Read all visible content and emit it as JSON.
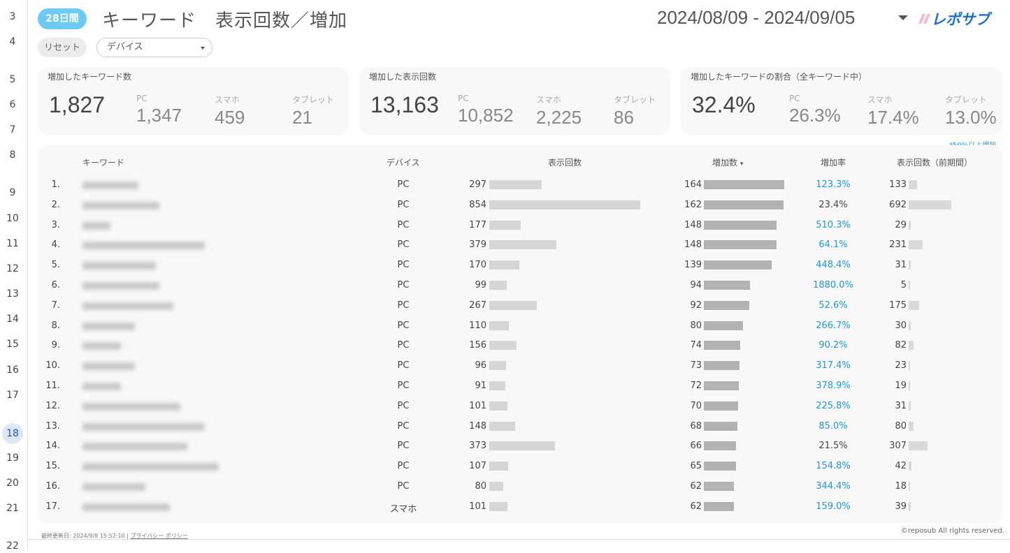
{
  "gutter": [
    "3",
    "4",
    "5",
    "6",
    "7",
    "8",
    "9",
    "10",
    "11",
    "12",
    "13",
    "14",
    "15",
    "16",
    "17",
    "18",
    "19",
    "20",
    "21",
    "22"
  ],
  "gutter_active": "18",
  "header": {
    "period_badge": "28日間",
    "title": "キーワード　表示回数／増加",
    "date_range": "2024/08/09 - 2024/09/05",
    "logo_text": "レポサブ"
  },
  "filters": {
    "reset_label": "リセット",
    "device_label": "デバイス"
  },
  "cards": [
    {
      "title": "増加したキーワード数",
      "total": "1,827",
      "pc_label": "PC",
      "pc": "1,347",
      "sp_label": "スマホ",
      "sp": "459",
      "tab_label": "タブレット",
      "tab": "21"
    },
    {
      "title": "増加した表示回数",
      "total": "13,163",
      "pc_label": "PC",
      "pc": "10,852",
      "sp_label": "スマホ",
      "sp": "2,225",
      "tab_label": "タブレット",
      "tab": "86"
    },
    {
      "title": "増加したキーワードの割合（全キーワード中）",
      "total": "32.4%",
      "pc_label": "PC",
      "pc": "26.3%",
      "sp_label": "スマホ",
      "sp": "17.4%",
      "tab_label": "タブレット",
      "tab": "13.0%"
    }
  ],
  "note": "*50%以上増加",
  "table": {
    "headers": {
      "keyword": "キーワード",
      "device": "デバイス",
      "impressions": "表示回数",
      "increase": "増加数",
      "sort_indicator": "▾",
      "rate": "増加率",
      "previous": "表示回数（前期間）"
    },
    "highlight_color": "#1a9ae0",
    "rows": [
      {
        "rank": "1.",
        "device": "PC",
        "impressions": 297,
        "increase": 164,
        "rate": "123.3%",
        "high": true,
        "previous": 133
      },
      {
        "rank": "2.",
        "device": "PC",
        "impressions": 854,
        "increase": 162,
        "rate": "23.4%",
        "high": false,
        "previous": 692
      },
      {
        "rank": "3.",
        "device": "PC",
        "impressions": 177,
        "increase": 148,
        "rate": "510.3%",
        "high": true,
        "previous": 29
      },
      {
        "rank": "4.",
        "device": "PC",
        "impressions": 379,
        "increase": 148,
        "rate": "64.1%",
        "high": true,
        "previous": 231
      },
      {
        "rank": "5.",
        "device": "PC",
        "impressions": 170,
        "increase": 139,
        "rate": "448.4%",
        "high": true,
        "previous": 31
      },
      {
        "rank": "6.",
        "device": "PC",
        "impressions": 99,
        "increase": 94,
        "rate": "1880.0%",
        "high": true,
        "previous": 5
      },
      {
        "rank": "7.",
        "device": "PC",
        "impressions": 267,
        "increase": 92,
        "rate": "52.6%",
        "high": true,
        "previous": 175
      },
      {
        "rank": "8.",
        "device": "PC",
        "impressions": 110,
        "increase": 80,
        "rate": "266.7%",
        "high": true,
        "previous": 30
      },
      {
        "rank": "9.",
        "device": "PC",
        "impressions": 156,
        "increase": 74,
        "rate": "90.2%",
        "high": true,
        "previous": 82
      },
      {
        "rank": "10.",
        "device": "PC",
        "impressions": 96,
        "increase": 73,
        "rate": "317.4%",
        "high": true,
        "previous": 23
      },
      {
        "rank": "11.",
        "device": "PC",
        "impressions": 91,
        "increase": 72,
        "rate": "378.9%",
        "high": true,
        "previous": 19
      },
      {
        "rank": "12.",
        "device": "PC",
        "impressions": 101,
        "increase": 70,
        "rate": "225.8%",
        "high": true,
        "previous": 31
      },
      {
        "rank": "13.",
        "device": "PC",
        "impressions": 148,
        "increase": 68,
        "rate": "85.0%",
        "high": true,
        "previous": 80
      },
      {
        "rank": "14.",
        "device": "PC",
        "impressions": 373,
        "increase": 66,
        "rate": "21.5%",
        "high": false,
        "previous": 307
      },
      {
        "rank": "15.",
        "device": "PC",
        "impressions": 107,
        "increase": 65,
        "rate": "154.8%",
        "high": true,
        "previous": 42
      },
      {
        "rank": "16.",
        "device": "PC",
        "impressions": 80,
        "increase": 62,
        "rate": "344.4%",
        "high": true,
        "previous": 18
      },
      {
        "rank": "17.",
        "device": "スマホ",
        "impressions": 101,
        "increase": 62,
        "rate": "159.0%",
        "high": true,
        "previous": 39
      }
    ]
  },
  "footer": {
    "updated": "最終更新日: 2024/9/8 15:52:10",
    "separator": "|",
    "privacy": "プライバシー ポリシー",
    "copyright": "©reposub All rights reserved."
  }
}
